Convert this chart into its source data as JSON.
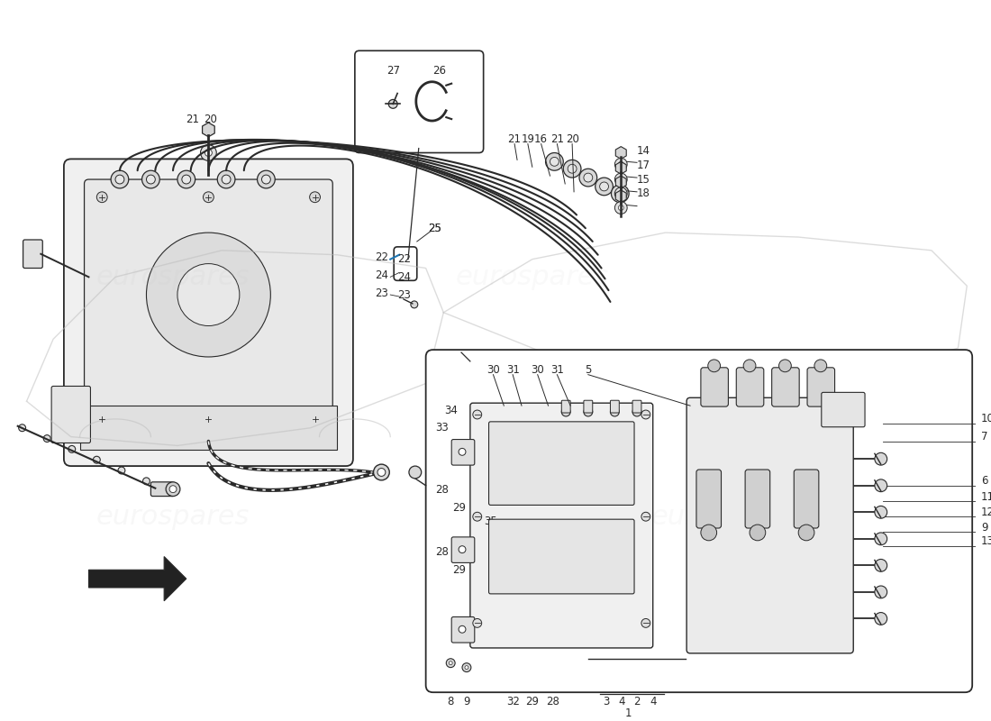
{
  "bg_color": "#ffffff",
  "lc": "#2a2a2a",
  "wm_color": "#c8c8c8",
  "figsize": [
    11.0,
    8.0
  ],
  "dpi": 100,
  "fs": 8.5
}
